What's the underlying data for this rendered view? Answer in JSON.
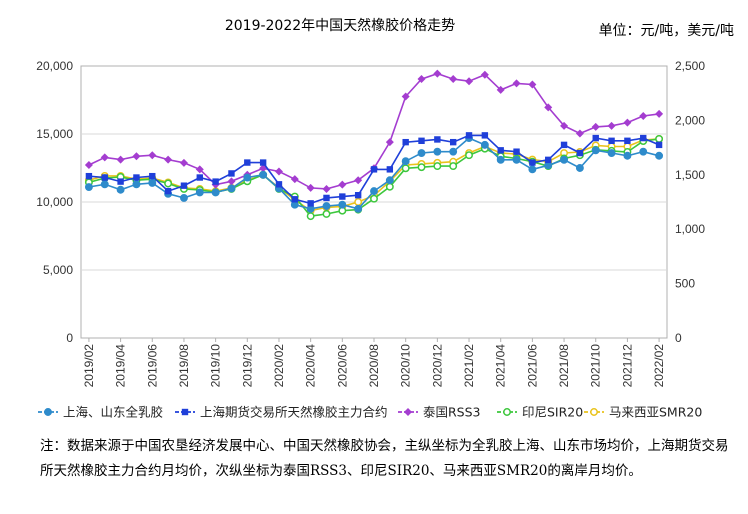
{
  "header": {
    "title": "2019-2022年中国天然橡胶价格走势",
    "unit": "单位：元/吨，美元/吨"
  },
  "note": "注：数据来源于中国农垦经济发展中心、中国天然橡胶协会，主纵坐标为全乳胶上海、山东市场均价，上海期货交易所天然橡胶主力合约月均价，次纵坐标为泰国RSS3、印尼SIR20、马来西亚SMR20的离岸月均价。",
  "chart_data": {
    "type": "line",
    "x": [
      "2019/02",
      "2019/03",
      "2019/04",
      "2019/05",
      "2019/06",
      "2019/07",
      "2019/08",
      "2019/09",
      "2019/10",
      "2019/11",
      "2019/12",
      "2020/01",
      "2020/02",
      "2020/03",
      "2020/04",
      "2020/05",
      "2020/06",
      "2020/07",
      "2020/08",
      "2020/09",
      "2020/10",
      "2020/11",
      "2020/12",
      "2021/01",
      "2021/02",
      "2021/03",
      "2021/04",
      "2021/05",
      "2021/06",
      "2021/07",
      "2021/08",
      "2021/09",
      "2021/10",
      "2021/11",
      "2021/12",
      "2022/01",
      "2022/02"
    ],
    "x_tick_labels": [
      "2019/02",
      "2019/04",
      "2019/06",
      "2019/08",
      "2019/10",
      "2019/12",
      "2020/02",
      "2020/04",
      "2020/06",
      "2020/08",
      "2020/10",
      "2020/12",
      "2021/02",
      "2021/04",
      "2021/06",
      "2021/08",
      "2021/10",
      "2021/12",
      "2022/02"
    ],
    "y_left": {
      "range": [
        0,
        20000
      ],
      "ticks": [
        "0",
        "5,000",
        "10,000",
        "15,000",
        "20,000"
      ]
    },
    "y_right": {
      "range": [
        0,
        2500
      ],
      "ticks": [
        "0",
        "500",
        "1,000",
        "1,500",
        "2,000",
        "2,500"
      ]
    },
    "grid": true,
    "legend_position": "bottom",
    "series": [
      {
        "name": "上海、山东全乳胶",
        "axis": "left",
        "color": "#2e8bcb",
        "marker": "circle",
        "values": [
          11100,
          11300,
          10900,
          11300,
          11400,
          10600,
          10300,
          10700,
          10700,
          11000,
          11800,
          12000,
          11000,
          9800,
          9500,
          9700,
          9800,
          9500,
          10800,
          11600,
          13000,
          13600,
          13700,
          13700,
          14700,
          14200,
          13100,
          13100,
          12400,
          12700,
          13100,
          12500,
          13800,
          13600,
          13400,
          13700,
          13400
        ]
      },
      {
        "name": "上海期货交易所天然橡胶主力合约",
        "axis": "left",
        "color": "#1f3fd9",
        "marker": "square",
        "values": [
          11900,
          11800,
          11500,
          11800,
          11900,
          10800,
          11200,
          11800,
          11500,
          12100,
          12900,
          12900,
          11300,
          10200,
          9900,
          10300,
          10400,
          10500,
          12400,
          12400,
          14400,
          14500,
          14600,
          14400,
          14900,
          14900,
          13800,
          13700,
          12900,
          13100,
          14200,
          13600,
          14700,
          14500,
          14500,
          14700,
          14200
        ]
      },
      {
        "name": "泰国RSS3",
        "axis": "right",
        "color": "#a43dd0",
        "marker": "diamond",
        "values": [
          1590,
          1660,
          1640,
          1670,
          1680,
          1640,
          1610,
          1550,
          1410,
          1440,
          1500,
          1560,
          1530,
          1460,
          1380,
          1370,
          1410,
          1450,
          1560,
          1800,
          2220,
          2380,
          2430,
          2380,
          2360,
          2420,
          2280,
          2340,
          2330,
          2120,
          1950,
          1880,
          1940,
          1950,
          1980,
          2040,
          2060
        ]
      },
      {
        "name": "印尼SIR20",
        "axis": "right",
        "color": "#3dc73d",
        "marker": "circle",
        "values": [
          1430,
          1470,
          1480,
          1450,
          1460,
          1420,
          1370,
          1360,
          1340,
          1370,
          1440,
          1500,
          1370,
          1300,
          1120,
          1140,
          1170,
          1180,
          1280,
          1390,
          1560,
          1570,
          1580,
          1580,
          1680,
          1740,
          1670,
          1650,
          1620,
          1580,
          1650,
          1680,
          1730,
          1720,
          1710,
          1810,
          1830
        ]
      },
      {
        "name": "马来西亚SMR20",
        "axis": "right",
        "color": "#e9c31c",
        "marker": "circle",
        "values": [
          1450,
          1490,
          1490,
          1460,
          1470,
          1430,
          1380,
          1370,
          1350,
          1380,
          1450,
          1500,
          1380,
          1270,
          1170,
          1200,
          1210,
          1250,
          1310,
          1440,
          1590,
          1600,
          1610,
          1620,
          1700,
          1760,
          1700,
          1690,
          1640,
          1620,
          1700,
          1710,
          1770,
          1760,
          1760,
          1820,
          1830
        ]
      }
    ]
  }
}
